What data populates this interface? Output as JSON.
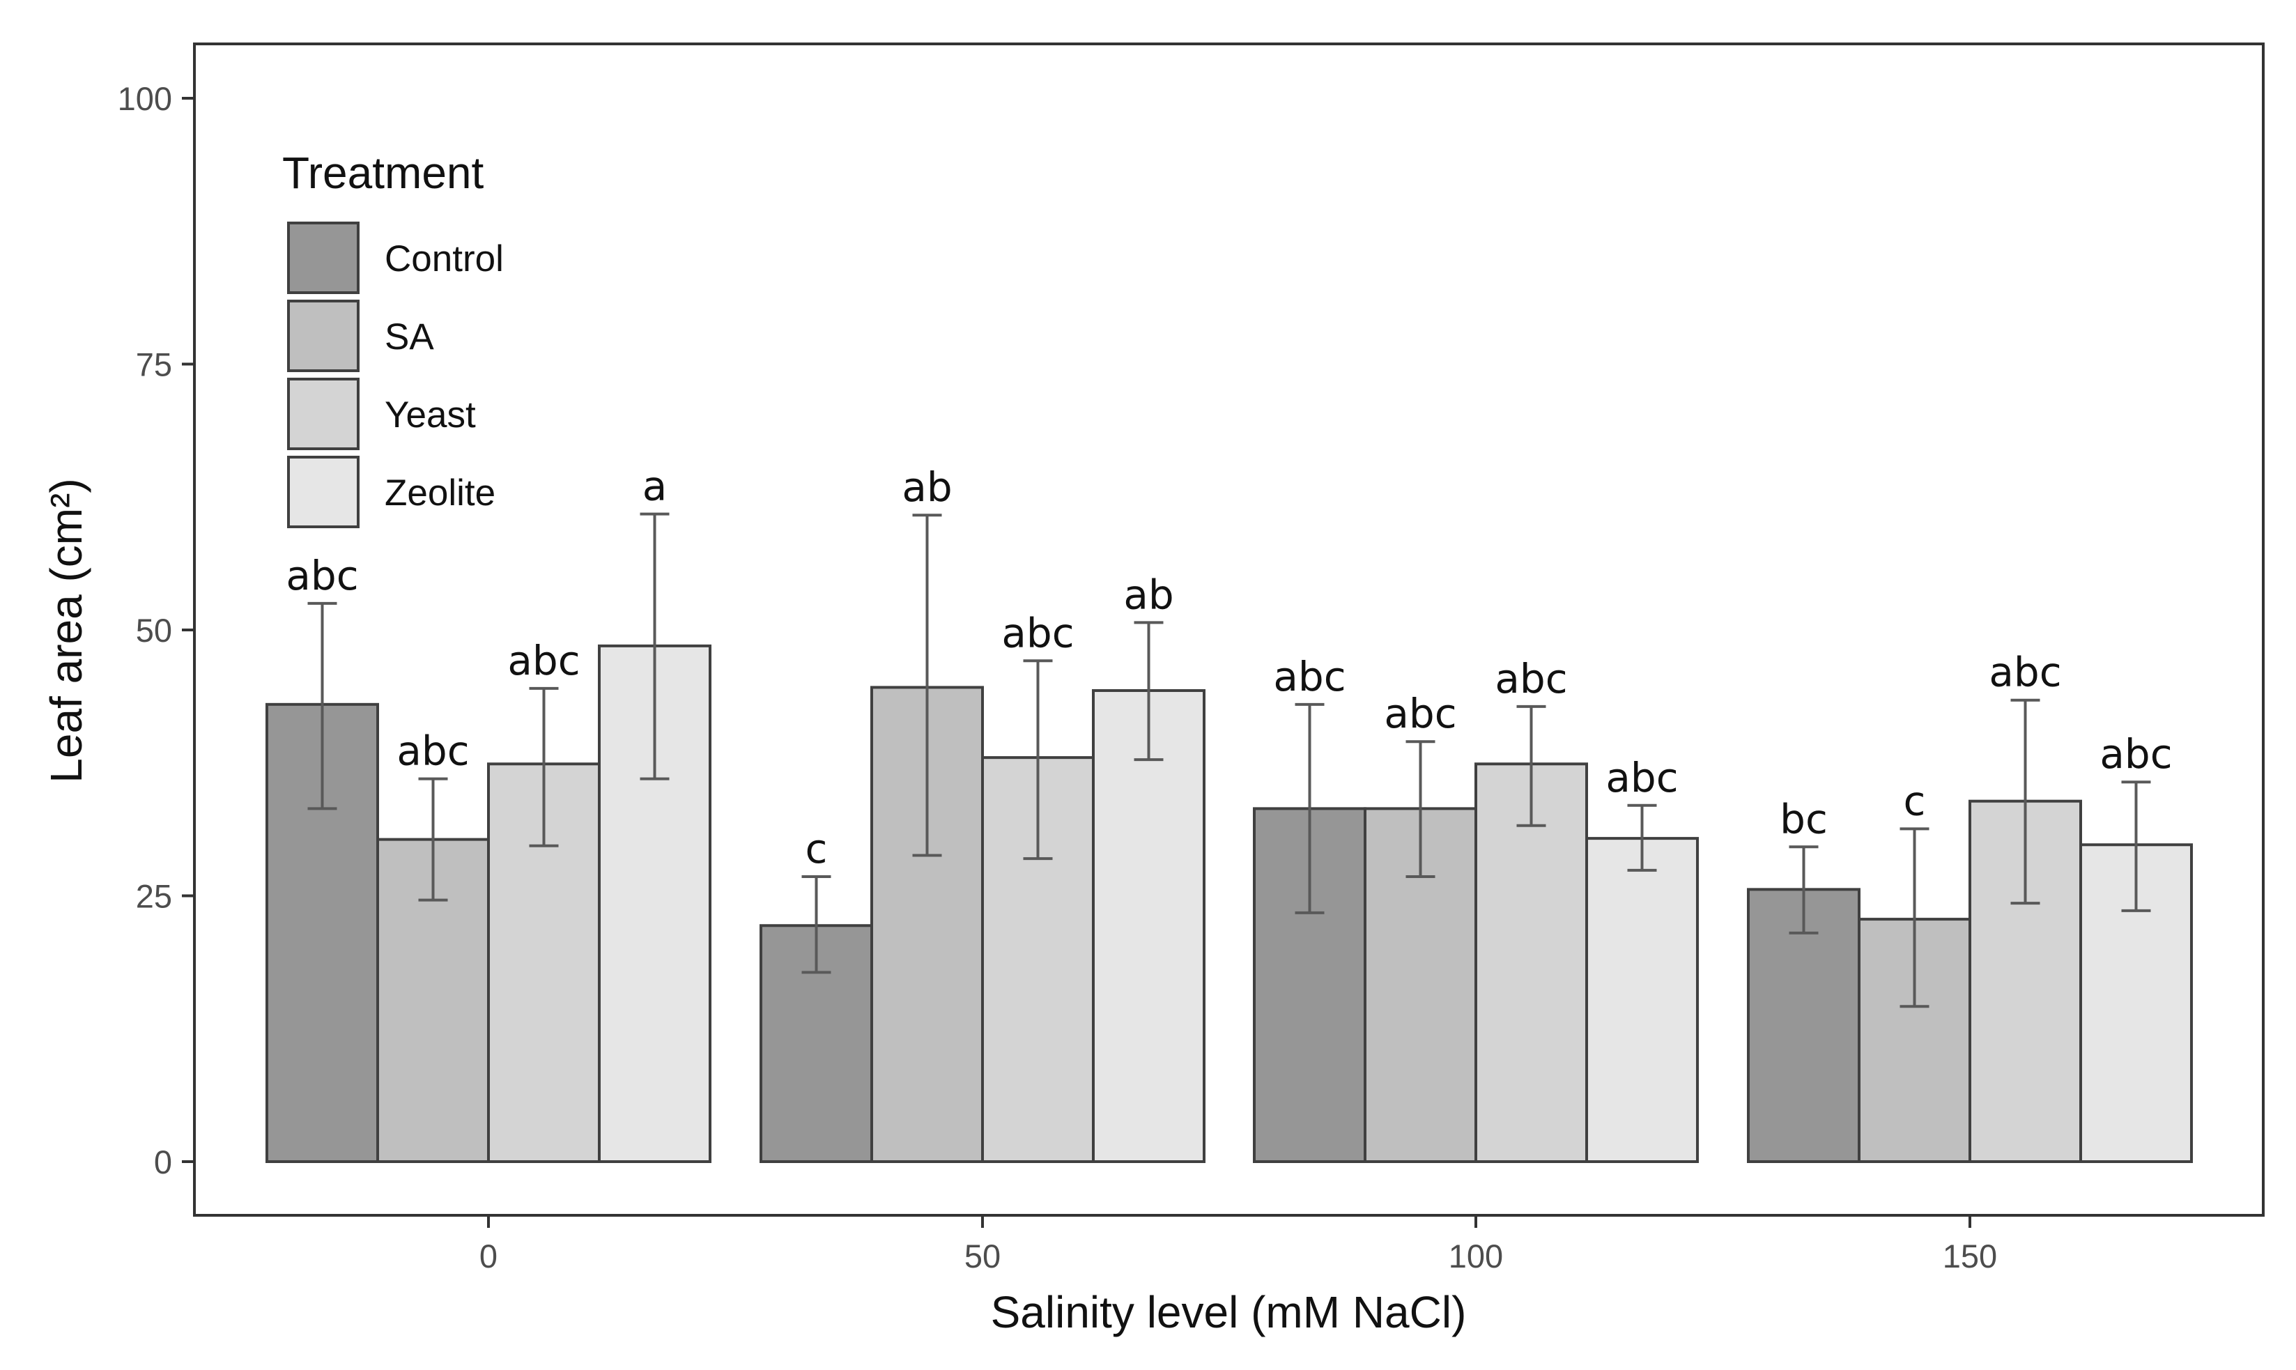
{
  "chart_data": {
    "type": "bar",
    "title": "",
    "xlabel": "Salinity level (mM NaCl)",
    "ylabel": "Leaf area (cm²)",
    "ylim": [
      -10,
      105
    ],
    "yticks": [
      0,
      25,
      50,
      75,
      100
    ],
    "categories": [
      "0",
      "50",
      "100",
      "150"
    ],
    "legend": {
      "title": "Treatment",
      "position": "top-left"
    },
    "series": [
      {
        "name": "Control",
        "color": "#969696",
        "values": [
          43.0,
          22.2,
          33.2,
          25.6
        ],
        "errors": [
          [
            33.2,
            52.5
          ],
          [
            17.8,
            26.8
          ],
          [
            23.4,
            43.0
          ],
          [
            21.5,
            29.6
          ]
        ],
        "labels": [
          "abc",
          "c",
          "abc",
          "bc"
        ]
      },
      {
        "name": "SA",
        "color": "#bfbfbf",
        "values": [
          30.3,
          44.6,
          33.2,
          22.8
        ],
        "errors": [
          [
            24.6,
            36.0
          ],
          [
            28.8,
            60.8
          ],
          [
            26.8,
            39.5
          ],
          [
            14.6,
            31.3
          ]
        ],
        "labels": [
          "abc",
          "ab",
          "abc",
          "c"
        ]
      },
      {
        "name": "Yeast",
        "color": "#d4d4d4",
        "values": [
          37.4,
          38.0,
          37.4,
          33.9
        ],
        "errors": [
          [
            29.7,
            44.5
          ],
          [
            28.5,
            47.1
          ],
          [
            31.6,
            42.8
          ],
          [
            24.3,
            43.4
          ]
        ],
        "labels": [
          "abc",
          "abc",
          "abc",
          "abc"
        ]
      },
      {
        "name": "Zeolite",
        "color": "#e6e6e6",
        "values": [
          48.5,
          44.3,
          30.4,
          29.8
        ],
        "errors": [
          [
            36.0,
            60.9
          ],
          [
            37.8,
            50.7
          ],
          [
            27.4,
            33.5
          ],
          [
            23.6,
            35.7
          ]
        ],
        "labels": [
          "a",
          "ab",
          "abc",
          "abc"
        ]
      }
    ]
  }
}
